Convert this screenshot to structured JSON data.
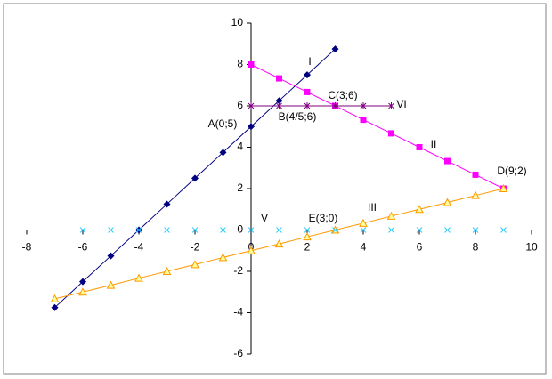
{
  "chart_data": {
    "type": "line",
    "xlim": [
      -8,
      10
    ],
    "xticks": [
      -8,
      -6,
      -4,
      -2,
      0,
      2,
      4,
      6,
      8,
      10
    ],
    "ylim": [
      -6,
      10
    ],
    "yticks": [
      -6,
      -4,
      -2,
      0,
      2,
      4,
      6,
      8,
      10
    ],
    "series": [
      {
        "name": "I",
        "color": "#000080",
        "marker": "diamond",
        "x": [
          -7,
          -6,
          -5,
          -4,
          -3,
          -2,
          -1,
          0,
          1,
          2,
          3
        ],
        "values": [
          -3.75,
          -2.5,
          -1.25,
          0,
          1.25,
          2.5,
          3.75,
          5,
          6.25,
          7.5,
          8.75
        ]
      },
      {
        "name": "II",
        "color": "#ff00ff",
        "marker": "square",
        "x": [
          0,
          1,
          2,
          3,
          4,
          5,
          6,
          7,
          8,
          9
        ],
        "values": [
          8,
          7.33,
          6.67,
          6,
          5.33,
          4.67,
          4,
          3.33,
          2.67,
          2
        ]
      },
      {
        "name": "III",
        "color": "#ff9900",
        "marker": "triangle",
        "x": [
          -7,
          -6,
          -5,
          -4,
          -3,
          -2,
          -1,
          0,
          1,
          2,
          3,
          4,
          5,
          6,
          7,
          8,
          9
        ],
        "values": [
          -3.33,
          -3,
          -2.67,
          -2.33,
          -2,
          -1.67,
          -1.33,
          -1,
          -0.67,
          -0.33,
          0,
          0.33,
          0.67,
          1,
          1.33,
          1.67,
          2
        ]
      },
      {
        "name": "V",
        "color": "#33ccff",
        "marker": "x",
        "x": [
          -6,
          -5,
          -4,
          -3,
          -2,
          -1,
          0,
          1,
          2,
          3,
          4,
          5,
          6,
          7,
          8,
          9
        ],
        "values": [
          0,
          0,
          0,
          0,
          0,
          0,
          0,
          0,
          0,
          0,
          0,
          0,
          0,
          0,
          0,
          0
        ]
      },
      {
        "name": "VI",
        "color": "#800080",
        "marker": "star",
        "x": [
          0,
          1,
          2,
          3,
          4,
          5
        ],
        "values": [
          6,
          6,
          6,
          6,
          6,
          6
        ]
      }
    ],
    "annotations": [
      "I",
      "II",
      "III",
      "V",
      "VI",
      "A(0;5)",
      "B(4/5;6)",
      "C(3;6)",
      "D(9;2)",
      "E(3;0)"
    ]
  }
}
